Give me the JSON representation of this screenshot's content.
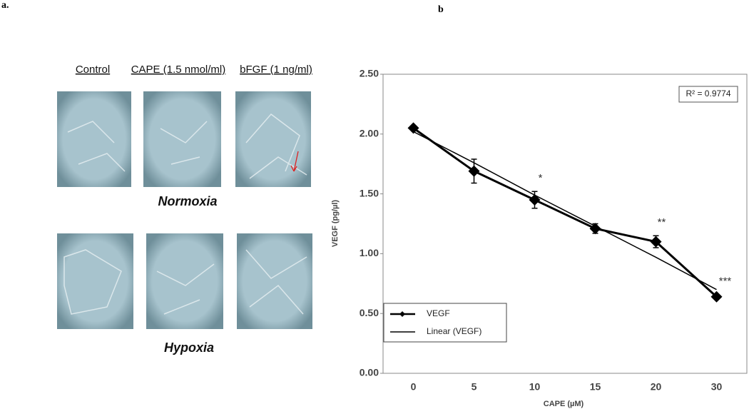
{
  "panel_a": {
    "label": "a.",
    "columns": [
      "Control",
      "CAPE (1.5 nmol/ml)",
      "bFGF (1 ng/ml)"
    ],
    "rows": [
      "Normoxia",
      "Hypoxia"
    ]
  },
  "panel_b": {
    "label": "b"
  },
  "chart_data": {
    "type": "line",
    "x_label": "CAPE (µM)",
    "y_label": "VEGF (pg/µl)",
    "annotation": "R² = 0.9774",
    "categories": [
      "0",
      "5",
      "10",
      "15",
      "20",
      "30"
    ],
    "significance": [
      null,
      null,
      "*",
      null,
      "**",
      "***"
    ],
    "series": [
      {
        "name": "VEGF",
        "color": "#000000",
        "values": [
          2.05,
          1.69,
          1.45,
          1.21,
          1.1,
          0.64
        ],
        "errors": [
          0.01,
          0.1,
          0.07,
          0.04,
          0.05,
          0.02
        ]
      },
      {
        "name": "Linear (VEGF)",
        "color": "#000000",
        "values": [
          2.02,
          1.76,
          1.49,
          1.23,
          0.97,
          0.7
        ]
      }
    ],
    "ylim": [
      0,
      2.5
    ],
    "yticks": [
      {
        "value": 0,
        "label": "0.00"
      },
      {
        "value": 0.5,
        "label": "0.50"
      },
      {
        "value": 1,
        "label": "1.00"
      },
      {
        "value": 1.5,
        "label": "1.50"
      },
      {
        "value": 2,
        "label": "2.00"
      },
      {
        "value": 2.5,
        "label": "2.50"
      }
    ],
    "legend": "lower left"
  }
}
